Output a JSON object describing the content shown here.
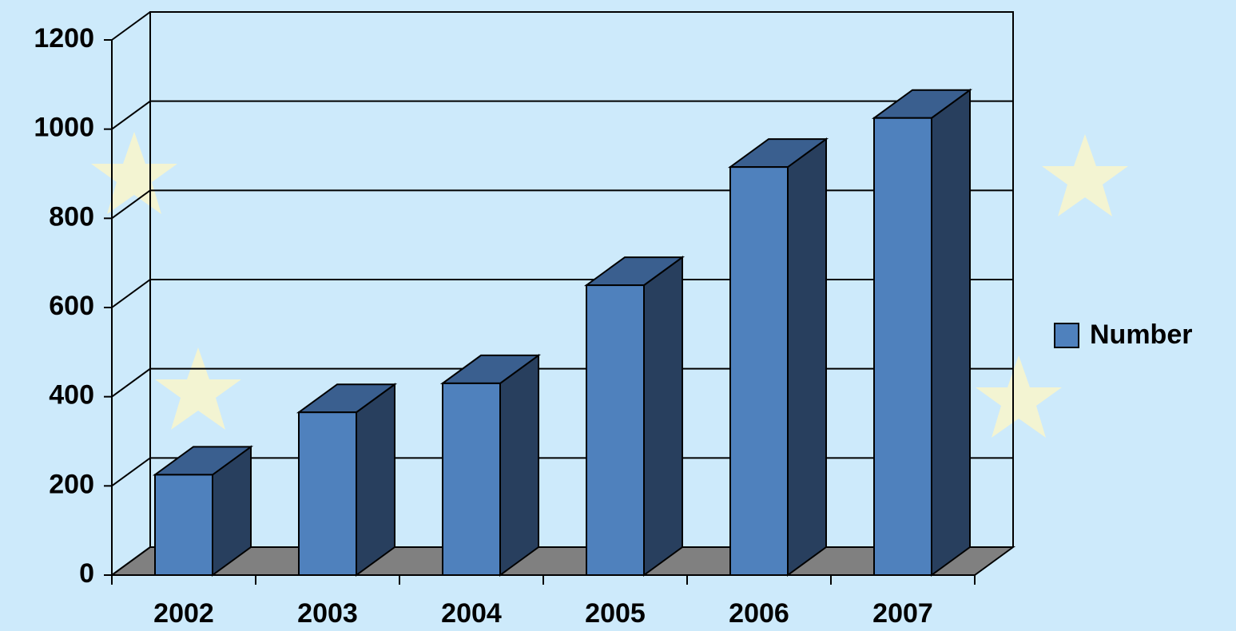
{
  "chart_data": {
    "type": "bar3d",
    "categories": [
      "2002",
      "2003",
      "2004",
      "2005",
      "2006",
      "2007"
    ],
    "series": [
      {
        "name": "Number",
        "color": "#4f81bd",
        "values": [
          225,
          365,
          430,
          650,
          915,
          1025
        ]
      }
    ],
    "ylim": [
      0,
      1200
    ],
    "yticks": [
      0,
      200,
      400,
      600,
      800,
      1000,
      1200
    ],
    "grid": true,
    "legend": "right"
  }
}
